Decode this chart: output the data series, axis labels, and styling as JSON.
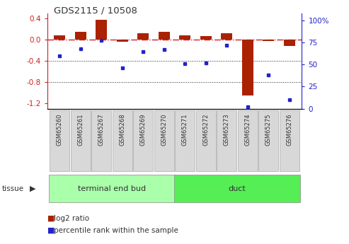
{
  "title": "GDS2115 / 10508",
  "samples": [
    "GSM65260",
    "GSM65261",
    "GSM65267",
    "GSM65268",
    "GSM65269",
    "GSM65270",
    "GSM65271",
    "GSM65272",
    "GSM65273",
    "GSM65274",
    "GSM65275",
    "GSM65276"
  ],
  "log2_ratio": [
    0.08,
    0.15,
    0.38,
    -0.04,
    0.12,
    0.15,
    0.08,
    0.07,
    0.12,
    -1.05,
    -0.02,
    -0.12
  ],
  "percentile_rank": [
    60,
    68,
    78,
    46,
    65,
    67,
    51,
    52,
    72,
    2,
    38,
    10
  ],
  "groups": [
    {
      "label": "terminal end bud",
      "start": 0,
      "end": 6,
      "color": "#aaffaa"
    },
    {
      "label": "duct",
      "start": 6,
      "end": 12,
      "color": "#55ee55"
    }
  ],
  "ylim_left": [
    -1.3,
    0.5
  ],
  "ylim_right": [
    0,
    108.3
  ],
  "left_ticks": [
    0.4,
    0.0,
    -0.4,
    -0.8,
    -1.2
  ],
  "right_ticks": [
    100,
    75,
    50,
    25,
    0
  ],
  "bar_color": "#aa2200",
  "dot_color": "#2222cc",
  "ref_line_color": "#cc2222",
  "grid_color": "#222222",
  "bg_color": "#ffffff",
  "plot_bg": "#ffffff",
  "label_box_color": "#d8d8d8",
  "label_box_edge": "#aaaaaa"
}
